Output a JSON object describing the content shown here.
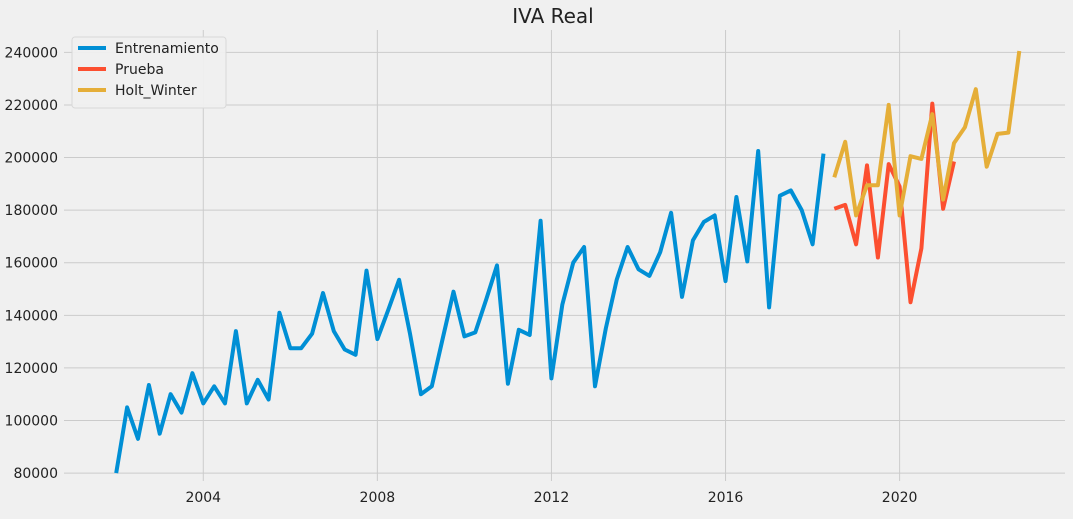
{
  "chart_data": {
    "type": "line",
    "title": "IVA Real",
    "xlabel": "",
    "ylabel": "",
    "grid": true,
    "legend_position": "top-left",
    "xlim": [
      2000.8,
      2023.8
    ],
    "ylim": [
      77000,
      248500
    ],
    "x_ticks": [
      2004,
      2008,
      2012,
      2016,
      2020
    ],
    "x_tick_labels": [
      "2004",
      "2008",
      "2012",
      "2016",
      "2020"
    ],
    "y_ticks": [
      80000,
      100000,
      120000,
      140000,
      160000,
      180000,
      200000,
      220000,
      240000
    ],
    "y_tick_labels": [
      "80000",
      "100000",
      "120000",
      "140000",
      "160000",
      "180000",
      "200000",
      "220000",
      "240000"
    ],
    "series": [
      {
        "name": "Entrenamiento",
        "color": "#008fd5",
        "x": [
          2002.0,
          2002.25,
          2002.5,
          2002.75,
          2003.0,
          2003.25,
          2003.5,
          2003.75,
          2004.0,
          2004.25,
          2004.5,
          2004.75,
          2005.0,
          2005.25,
          2005.5,
          2005.75,
          2006.0,
          2006.25,
          2006.5,
          2006.75,
          2007.0,
          2007.25,
          2007.5,
          2007.75,
          2008.0,
          2008.25,
          2008.5,
          2008.75,
          2009.0,
          2009.25,
          2009.5,
          2009.75,
          2010.0,
          2010.25,
          2010.5,
          2010.75,
          2011.0,
          2011.25,
          2011.5,
          2011.75,
          2012.0,
          2012.25,
          2012.5,
          2012.75,
          2013.0,
          2013.25,
          2013.5,
          2013.75,
          2014.0,
          2014.25,
          2014.5,
          2014.75,
          2015.0,
          2015.25,
          2015.5,
          2015.75,
          2016.0,
          2016.25,
          2016.5,
          2016.75,
          2017.0,
          2017.25,
          2017.5,
          2017.75,
          2018.0,
          2018.25
        ],
        "y": [
          80000,
          105000,
          93000,
          113500,
          95000,
          110000,
          103000,
          118000,
          106500,
          113000,
          106500,
          134000,
          106500,
          115500,
          108000,
          141000,
          127500,
          127500,
          133000,
          148500,
          134000,
          127000,
          125000,
          157000,
          131000,
          142000,
          153500,
          133000,
          110000,
          113000,
          131000,
          149000,
          132000,
          133500,
          146000,
          159000,
          114000,
          134500,
          132500,
          176000,
          116000,
          144000,
          160000,
          166000,
          113000,
          135000,
          153500,
          166000,
          157500,
          155000,
          164000,
          179000,
          147000,
          168500,
          175500,
          178000,
          153000,
          185000,
          160500,
          202500,
          143000,
          185500,
          187500,
          180000,
          167000,
          201500
        ]
      },
      {
        "name": "Prueba",
        "color": "#fc4f30",
        "x": [
          2018.5,
          2018.75,
          2019.0,
          2019.25,
          2019.5,
          2019.75,
          2020.0,
          2020.25,
          2020.5,
          2020.75,
          2021.0,
          2021.25
        ],
        "y": [
          180500,
          182000,
          167000,
          197000,
          162000,
          197500,
          189000,
          145000,
          165500,
          220500,
          180500,
          198500
        ]
      },
      {
        "name": "Holt_Winter",
        "color": "#e5ae38",
        "x": [
          2018.5,
          2018.75,
          2019.0,
          2019.25,
          2019.5,
          2019.75,
          2020.0,
          2020.25,
          2020.5,
          2020.75,
          2021.0,
          2021.25,
          2021.5,
          2021.75,
          2022.0,
          2022.25,
          2022.5,
          2022.75
        ],
        "y": [
          192500,
          206000,
          178000,
          189500,
          189500,
          220000,
          178000,
          200500,
          199500,
          216500,
          184000,
          205500,
          211500,
          226000,
          196500,
          209000,
          209500,
          240500
        ]
      }
    ]
  }
}
